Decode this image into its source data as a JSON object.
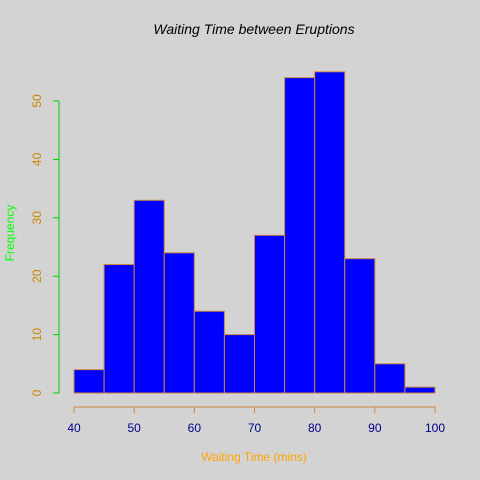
{
  "chart_data": {
    "type": "bar",
    "title": "Waiting Time between Eruptions",
    "xlabel": "Waiting Time (mins)",
    "ylabel": "Frequency",
    "bins": [
      {
        "start": 40,
        "end": 45,
        "count": 4
      },
      {
        "start": 45,
        "end": 50,
        "count": 22
      },
      {
        "start": 50,
        "end": 55,
        "count": 33
      },
      {
        "start": 55,
        "end": 60,
        "count": 24
      },
      {
        "start": 60,
        "end": 65,
        "count": 14
      },
      {
        "start": 65,
        "end": 70,
        "count": 10
      },
      {
        "start": 70,
        "end": 75,
        "count": 27
      },
      {
        "start": 75,
        "end": 80,
        "count": 54
      },
      {
        "start": 80,
        "end": 85,
        "count": 55
      },
      {
        "start": 85,
        "end": 90,
        "count": 23
      },
      {
        "start": 90,
        "end": 95,
        "count": 5
      },
      {
        "start": 95,
        "end": 100,
        "count": 1
      }
    ],
    "xlim": [
      40,
      100
    ],
    "ylim": [
      0,
      50
    ],
    "x_ticks": [
      40,
      50,
      60,
      70,
      80,
      90,
      100
    ],
    "y_ticks": [
      0,
      10,
      20,
      30,
      40,
      50
    ],
    "grid": false,
    "colors": {
      "background": "#d3d3d3",
      "bar_fill": "#0000ff",
      "bar_border": "#cd853f",
      "title": "#000000",
      "xlabel": "#ffa500",
      "ylabel": "#00ff00",
      "x_axis": "#cd853f",
      "x_tick_labels": "#00008b",
      "y_axis": "#00cd00",
      "y_tick_labels": "#cd8500"
    }
  }
}
